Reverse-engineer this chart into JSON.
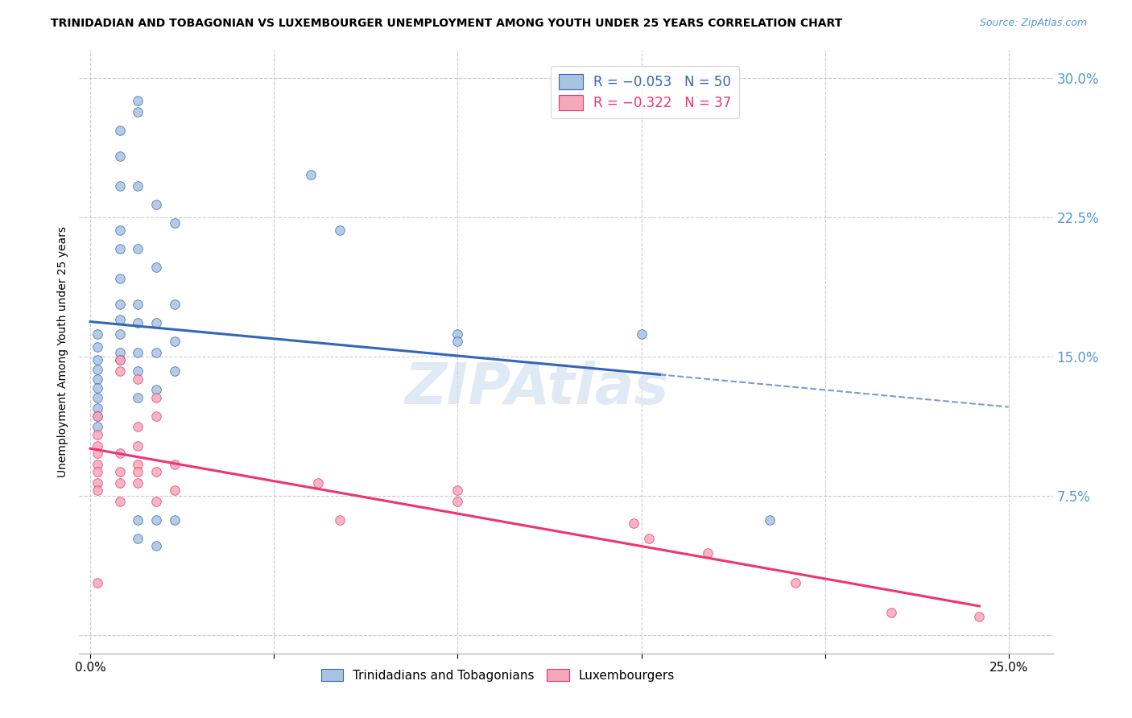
{
  "title": "TRINIDADIAN AND TOBAGONIAN VS LUXEMBOURGER UNEMPLOYMENT AMONG YOUTH UNDER 25 YEARS CORRELATION CHART",
  "source": "Source: ZipAtlas.com",
  "ylabel": "Unemployment Among Youth under 25 years",
  "y_ticks": [
    0.0,
    0.075,
    0.15,
    0.225,
    0.3
  ],
  "y_tick_labels": [
    "",
    "7.5%",
    "15.0%",
    "22.5%",
    "30.0%"
  ],
  "x_ticks": [
    0.0,
    0.05,
    0.1,
    0.15,
    0.2,
    0.25
  ],
  "x_tick_labels": [
    "0.0%",
    "",
    "",
    "",
    "",
    "25.0%"
  ],
  "blue_color": "#A8C4E0",
  "pink_color": "#F4A8B8",
  "blue_line_color": "#3366BB",
  "pink_line_color": "#EE3377",
  "watermark": "ZIPAtlas",
  "blue_scatter": [
    [
      0.002,
      0.155
    ],
    [
      0.002,
      0.148
    ],
    [
      0.002,
      0.143
    ],
    [
      0.002,
      0.138
    ],
    [
      0.002,
      0.133
    ],
    [
      0.002,
      0.128
    ],
    [
      0.002,
      0.122
    ],
    [
      0.002,
      0.118
    ],
    [
      0.002,
      0.112
    ],
    [
      0.002,
      0.162
    ],
    [
      0.008,
      0.272
    ],
    [
      0.008,
      0.258
    ],
    [
      0.008,
      0.242
    ],
    [
      0.008,
      0.218
    ],
    [
      0.008,
      0.208
    ],
    [
      0.008,
      0.192
    ],
    [
      0.008,
      0.178
    ],
    [
      0.008,
      0.17
    ],
    [
      0.008,
      0.162
    ],
    [
      0.008,
      0.152
    ],
    [
      0.008,
      0.148
    ],
    [
      0.013,
      0.288
    ],
    [
      0.013,
      0.282
    ],
    [
      0.013,
      0.242
    ],
    [
      0.013,
      0.208
    ],
    [
      0.013,
      0.178
    ],
    [
      0.013,
      0.168
    ],
    [
      0.013,
      0.152
    ],
    [
      0.013,
      0.142
    ],
    [
      0.013,
      0.128
    ],
    [
      0.013,
      0.062
    ],
    [
      0.013,
      0.052
    ],
    [
      0.018,
      0.232
    ],
    [
      0.018,
      0.198
    ],
    [
      0.018,
      0.168
    ],
    [
      0.018,
      0.152
    ],
    [
      0.018,
      0.132
    ],
    [
      0.018,
      0.062
    ],
    [
      0.018,
      0.048
    ],
    [
      0.023,
      0.222
    ],
    [
      0.023,
      0.178
    ],
    [
      0.023,
      0.158
    ],
    [
      0.023,
      0.142
    ],
    [
      0.023,
      0.062
    ],
    [
      0.06,
      0.248
    ],
    [
      0.068,
      0.218
    ],
    [
      0.1,
      0.162
    ],
    [
      0.1,
      0.158
    ],
    [
      0.15,
      0.162
    ],
    [
      0.185,
      0.062
    ]
  ],
  "pink_scatter": [
    [
      0.002,
      0.118
    ],
    [
      0.002,
      0.108
    ],
    [
      0.002,
      0.102
    ],
    [
      0.002,
      0.098
    ],
    [
      0.002,
      0.092
    ],
    [
      0.002,
      0.088
    ],
    [
      0.002,
      0.082
    ],
    [
      0.002,
      0.078
    ],
    [
      0.002,
      0.028
    ],
    [
      0.008,
      0.148
    ],
    [
      0.008,
      0.142
    ],
    [
      0.008,
      0.098
    ],
    [
      0.008,
      0.088
    ],
    [
      0.008,
      0.082
    ],
    [
      0.008,
      0.072
    ],
    [
      0.013,
      0.138
    ],
    [
      0.013,
      0.112
    ],
    [
      0.013,
      0.102
    ],
    [
      0.013,
      0.092
    ],
    [
      0.013,
      0.088
    ],
    [
      0.013,
      0.082
    ],
    [
      0.018,
      0.128
    ],
    [
      0.018,
      0.118
    ],
    [
      0.018,
      0.088
    ],
    [
      0.018,
      0.072
    ],
    [
      0.023,
      0.092
    ],
    [
      0.023,
      0.078
    ],
    [
      0.062,
      0.082
    ],
    [
      0.068,
      0.062
    ],
    [
      0.1,
      0.078
    ],
    [
      0.1,
      0.072
    ],
    [
      0.148,
      0.06
    ],
    [
      0.152,
      0.052
    ],
    [
      0.168,
      0.044
    ],
    [
      0.192,
      0.028
    ],
    [
      0.218,
      0.012
    ],
    [
      0.242,
      0.01
    ]
  ],
  "blue_line_x": [
    0.0,
    0.155,
    0.25
  ],
  "blue_line_solid_end": 0.155,
  "pink_line_x": [
    0.0,
    0.242
  ],
  "xlim": [
    -0.003,
    0.262
  ],
  "ylim": [
    -0.01,
    0.315
  ]
}
